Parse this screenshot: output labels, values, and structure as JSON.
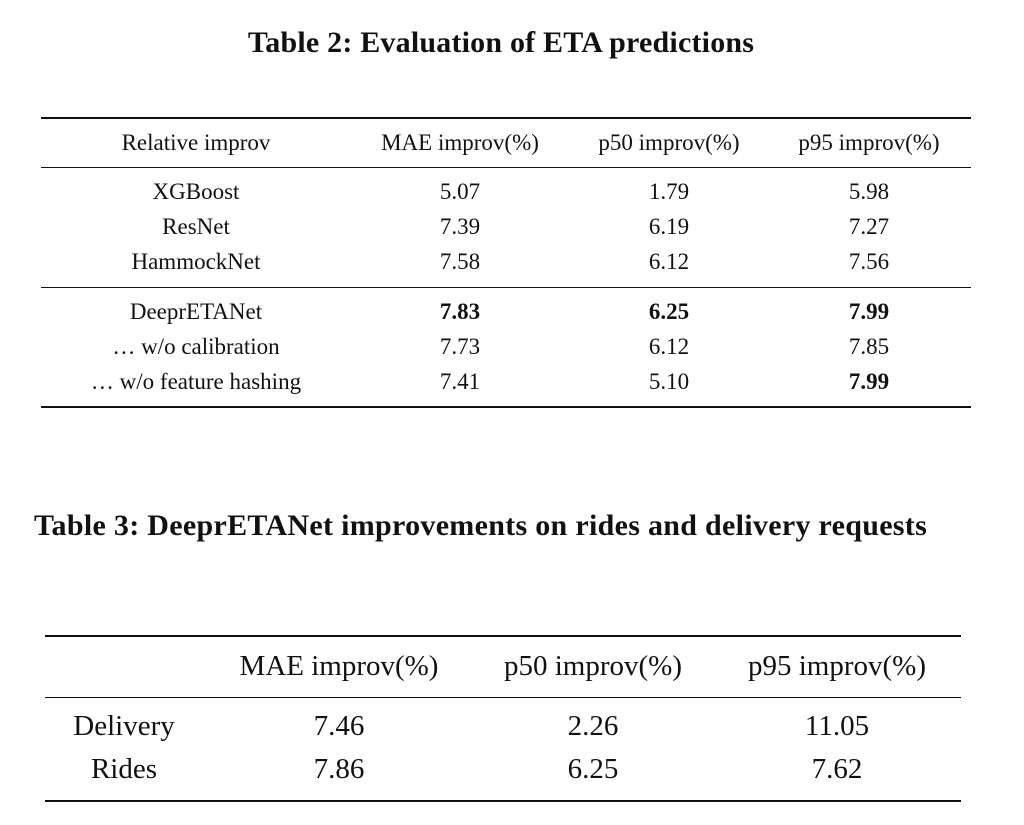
{
  "table2": {
    "caption": "Table 2: Evaluation of ETA predictions",
    "headers": [
      "Relative improv",
      "MAE improv(%)",
      "p50 improv(%)",
      "p95 improv(%)"
    ],
    "group1": [
      [
        "XGBoost",
        "5.07",
        "1.79",
        "5.98"
      ],
      [
        "ResNet",
        "7.39",
        "6.19",
        "7.27"
      ],
      [
        "HammockNet",
        "7.58",
        "6.12",
        "7.56"
      ]
    ],
    "group2": [
      [
        "DeeprETANet",
        "7.83",
        "6.25",
        "7.99"
      ],
      [
        "… w/o calibration",
        "7.73",
        "6.12",
        "7.85"
      ],
      [
        "… w/o feature hashing",
        "7.41",
        "5.10",
        "7.99"
      ]
    ]
  },
  "table3": {
    "caption": "Table 3: DeeprETANet improvements on rides and delivery requests",
    "headers": [
      "",
      "MAE improv(%)",
      "p50 improv(%)",
      "p95 improv(%)"
    ],
    "rows": [
      [
        "Delivery",
        "7.46",
        "2.26",
        "11.05"
      ],
      [
        "Rides",
        "7.86",
        "6.25",
        "7.62"
      ]
    ]
  }
}
